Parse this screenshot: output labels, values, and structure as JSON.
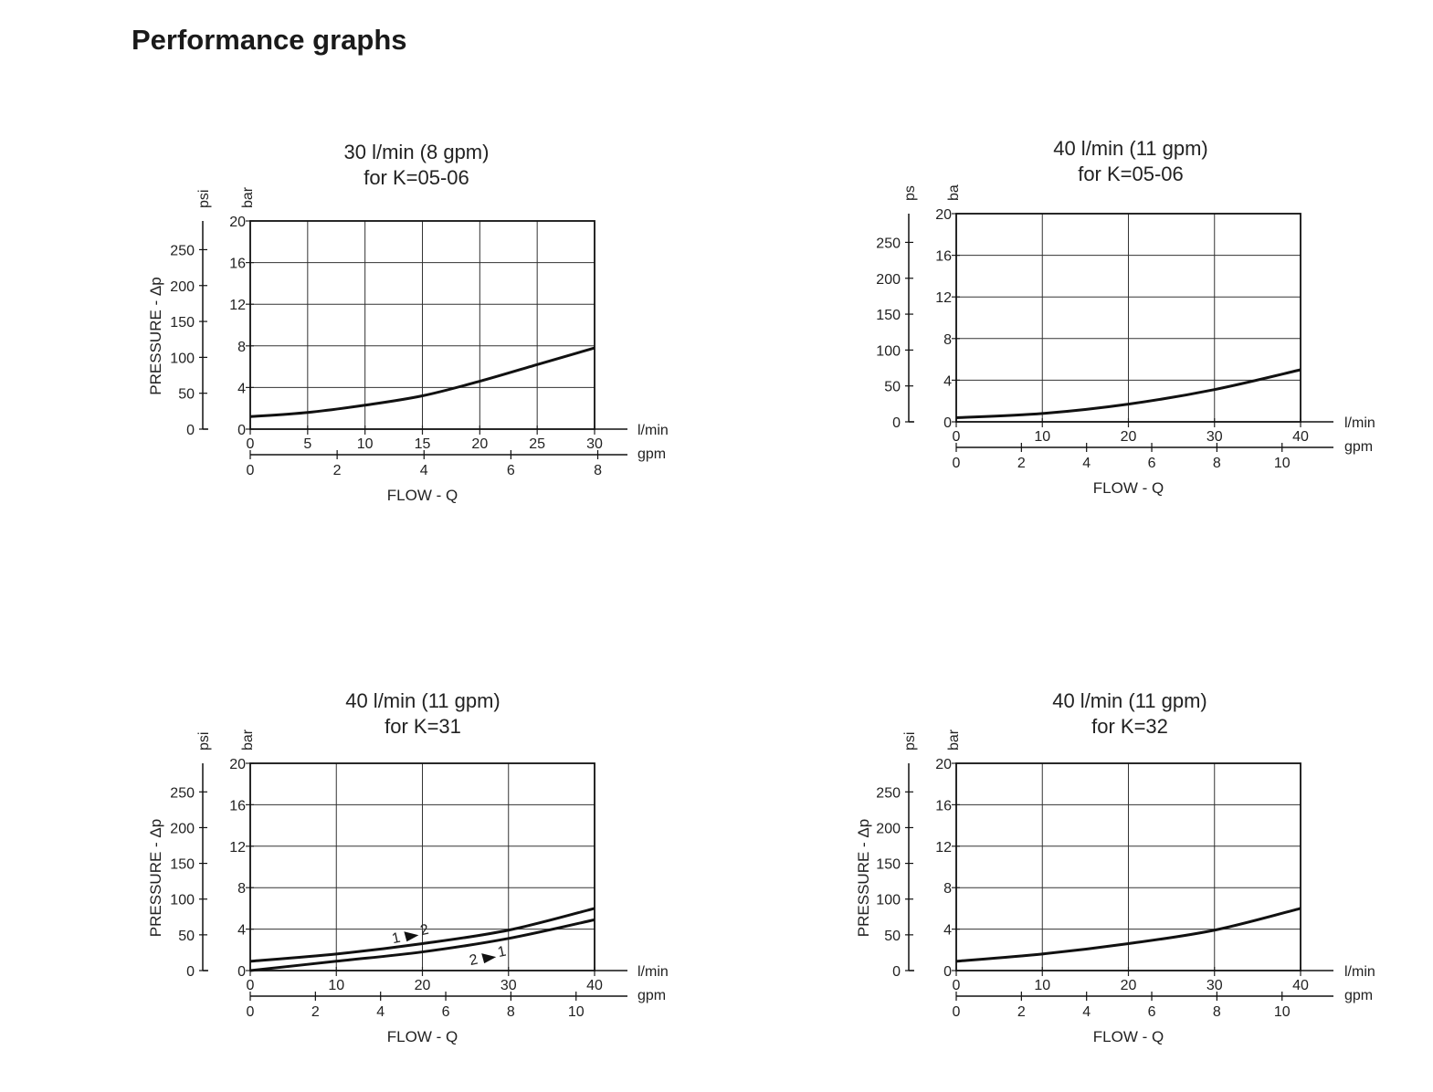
{
  "page": {
    "title": "Performance graphs"
  },
  "chart_data": [
    {
      "type": "line",
      "title": "30 l/min (8 gpm)",
      "subtitle": "for K=05-06",
      "ylabel": "PRESSURE - Δp",
      "y_unit_psi": "psi",
      "y_unit_bar": "bar",
      "xlabel": "FLOW - Q",
      "x_unit_lmin": "l/min",
      "x_unit_gpm": "gpm",
      "xlim": [
        0,
        30
      ],
      "ylim": [
        0,
        20
      ],
      "x_ticks": [
        "0",
        "5",
        "10",
        "15",
        "20",
        "25",
        "30"
      ],
      "y_ticks_bar": [
        "0",
        "4",
        "8",
        "12",
        "16",
        "20"
      ],
      "y_ticks_psi": [
        "0",
        "50",
        "100",
        "150",
        "200",
        "250"
      ],
      "gpm_ticks": [
        "0",
        "2",
        "4",
        "6",
        "8"
      ],
      "series": [
        {
          "name": "",
          "x": [
            0,
            5,
            10,
            15,
            20,
            25,
            30
          ],
          "y": [
            1.2,
            1.6,
            2.3,
            3.2,
            4.6,
            6.2,
            7.8
          ]
        }
      ],
      "annotations": []
    },
    {
      "type": "line",
      "title": "40 l/min (11 gpm)",
      "subtitle": "for K=05-06",
      "ylabel": "",
      "y_unit_psi": "ps",
      "y_unit_bar": "ba",
      "xlabel": "FLOW - Q",
      "x_unit_lmin": "l/min",
      "x_unit_gpm": "gpm",
      "xlim": [
        0,
        40
      ],
      "ylim": [
        0,
        20
      ],
      "x_ticks": [
        "0",
        "10",
        "20",
        "30",
        "40"
      ],
      "y_ticks_bar": [
        "0",
        "4",
        "8",
        "12",
        "16",
        "20"
      ],
      "y_ticks_psi": [
        "0",
        "50",
        "100",
        "150",
        "200",
        "250"
      ],
      "gpm_ticks": [
        "0",
        "2",
        "4",
        "6",
        "8",
        "10"
      ],
      "series": [
        {
          "name": "",
          "x": [
            0,
            10,
            20,
            30,
            40
          ],
          "y": [
            0.4,
            0.8,
            1.7,
            3.1,
            5.0
          ]
        }
      ],
      "annotations": []
    },
    {
      "type": "line",
      "title": "40 l/min (11 gpm)",
      "subtitle": "for K=31",
      "ylabel": "PRESSURE - Δp",
      "y_unit_psi": "psi",
      "y_unit_bar": "bar",
      "xlabel": "FLOW - Q",
      "x_unit_lmin": "l/min",
      "x_unit_gpm": "gpm",
      "xlim": [
        0,
        40
      ],
      "ylim": [
        0,
        20
      ],
      "x_ticks": [
        "0",
        "10",
        "20",
        "30",
        "40"
      ],
      "y_ticks_bar": [
        "0",
        "4",
        "8",
        "12",
        "16",
        "20"
      ],
      "y_ticks_psi": [
        "0",
        "50",
        "100",
        "150",
        "200",
        "250"
      ],
      "gpm_ticks": [
        "0",
        "2",
        "4",
        "6",
        "8",
        "10"
      ],
      "series": [
        {
          "name": "1▸2",
          "x": [
            0,
            10,
            20,
            30,
            40
          ],
          "y": [
            0.9,
            1.6,
            2.6,
            3.9,
            6.0
          ]
        },
        {
          "name": "2▸1",
          "x": [
            0,
            10,
            20,
            30,
            40
          ],
          "y": [
            0.0,
            0.9,
            1.8,
            3.1,
            4.9
          ]
        }
      ],
      "annotations": [
        {
          "label_from": "1",
          "label_to": "2",
          "x": 18.5,
          "y": 3.5
        },
        {
          "label_from": "2",
          "label_to": "1",
          "x": 27.5,
          "y": 1.4
        }
      ]
    },
    {
      "type": "line",
      "title": "40 l/min (11 gpm)",
      "subtitle": "for K=32",
      "ylabel": "PRESSURE - Δp",
      "y_unit_psi": "psi",
      "y_unit_bar": "bar",
      "xlabel": "FLOW - Q",
      "x_unit_lmin": "l/min",
      "x_unit_gpm": "gpm",
      "xlim": [
        0,
        40
      ],
      "ylim": [
        0,
        20
      ],
      "x_ticks": [
        "0",
        "10",
        "20",
        "30",
        "40"
      ],
      "y_ticks_bar": [
        "0",
        "4",
        "8",
        "12",
        "16",
        "20"
      ],
      "y_ticks_psi": [
        "0",
        "50",
        "100",
        "150",
        "200",
        "250"
      ],
      "gpm_ticks": [
        "0",
        "2",
        "4",
        "6",
        "8",
        "10"
      ],
      "series": [
        {
          "name": "",
          "x": [
            0,
            10,
            20,
            30,
            40
          ],
          "y": [
            0.9,
            1.6,
            2.6,
            3.9,
            6.0
          ]
        }
      ],
      "annotations": []
    }
  ]
}
